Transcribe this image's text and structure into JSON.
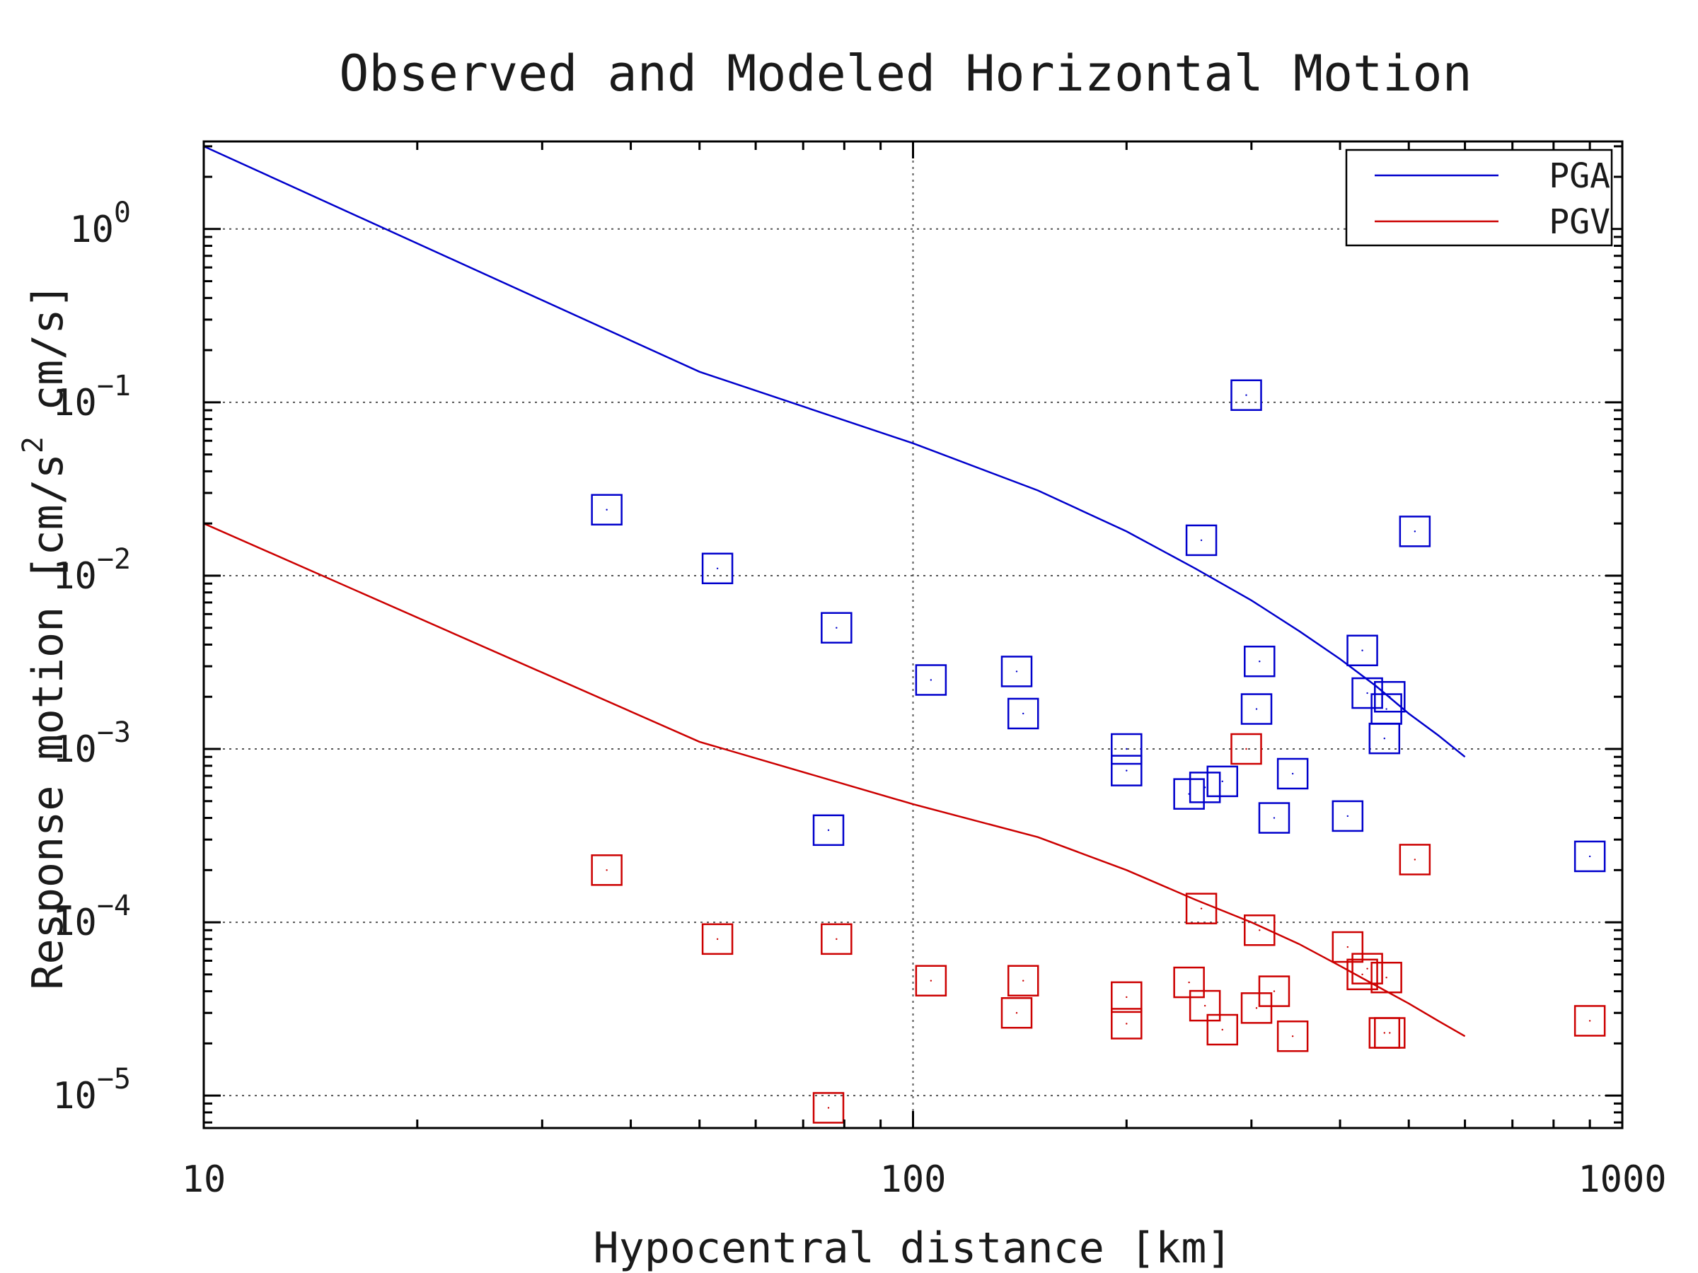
{
  "chart_data": {
    "type": "scatter",
    "title": "Observed and Modeled Horizontal Motion",
    "xlabel": "Hypocentral distance [km]",
    "ylabel": {
      "main": "Response motion [cm/s",
      "sup": "2",
      "tail": "cm/s]"
    },
    "x_scale": "log",
    "y_scale": "log",
    "xlim": [
      10,
      1000
    ],
    "ylim": [
      6.5e-06,
      3.2
    ],
    "grid": true,
    "legend_position": "top-right",
    "x_ticks": [
      {
        "value": 10,
        "label": "10"
      },
      {
        "value": 100,
        "label": "100"
      },
      {
        "value": 1000,
        "label": "1000"
      }
    ],
    "y_ticks": [
      {
        "value": 1,
        "base": "10",
        "exp": "0"
      },
      {
        "value": 0.1,
        "base": "10",
        "exp": "−1"
      },
      {
        "value": 0.01,
        "base": "10",
        "exp": "−2"
      },
      {
        "value": 0.001,
        "base": "10",
        "exp": "−3"
      },
      {
        "value": 0.0001,
        "base": "10",
        "exp": "−4"
      },
      {
        "value": 1e-05,
        "base": "10",
        "exp": "−5"
      }
    ],
    "lines": [
      {
        "name": "PGA",
        "color": "#0000cc",
        "x": [
          10,
          50,
          100,
          150,
          200,
          250,
          300,
          350,
          400,
          450,
          500,
          550,
          600
        ],
        "y": [
          3.0,
          0.15,
          0.058,
          0.031,
          0.018,
          0.011,
          0.0072,
          0.0048,
          0.0033,
          0.0023,
          0.0016,
          0.0012,
          0.0009
        ]
      },
      {
        "name": "PGV",
        "color": "#cc0000",
        "x": [
          10,
          50,
          100,
          150,
          200,
          250,
          300,
          350,
          400,
          450,
          500,
          550,
          600
        ],
        "y": [
          0.02,
          0.0011,
          0.00048,
          0.00031,
          0.0002,
          0.000135,
          0.0001,
          7.5e-05,
          5.6e-05,
          4.3e-05,
          3.4e-05,
          2.7e-05,
          2.2e-05
        ]
      }
    ],
    "scatter": [
      {
        "color": "#0000cc",
        "points": [
          {
            "x": 37,
            "y": 0.024
          },
          {
            "x": 53,
            "y": 0.011
          },
          {
            "x": 76,
            "y": 0.00034
          },
          {
            "x": 78,
            "y": 0.005
          },
          {
            "x": 106,
            "y": 0.0025
          },
          {
            "x": 140,
            "y": 0.0028
          },
          {
            "x": 143,
            "y": 0.0016
          },
          {
            "x": 200,
            "y": 0.001
          },
          {
            "x": 200,
            "y": 0.00075
          },
          {
            "x": 245,
            "y": 0.00055
          },
          {
            "x": 255,
            "y": 0.016
          },
          {
            "x": 258,
            "y": 0.0006
          },
          {
            "x": 273,
            "y": 0.00065
          },
          {
            "x": 295,
            "y": 0.11
          },
          {
            "x": 305,
            "y": 0.0017
          },
          {
            "x": 308,
            "y": 0.0032
          },
          {
            "x": 323,
            "y": 0.0004
          },
          {
            "x": 343,
            "y": 0.00072
          },
          {
            "x": 410,
            "y": 0.00041
          },
          {
            "x": 430,
            "y": 0.0037
          },
          {
            "x": 437,
            "y": 0.0021
          },
          {
            "x": 462,
            "y": 0.00115
          },
          {
            "x": 465,
            "y": 0.0017
          },
          {
            "x": 470,
            "y": 0.002
          },
          {
            "x": 510,
            "y": 0.018
          },
          {
            "x": 900,
            "y": 0.00024
          }
        ]
      },
      {
        "color": "#cc0000",
        "points": [
          {
            "x": 37,
            "y": 0.0002
          },
          {
            "x": 53,
            "y": 8e-05
          },
          {
            "x": 76,
            "y": 8.5e-06
          },
          {
            "x": 78,
            "y": 8e-05
          },
          {
            "x": 106,
            "y": 4.6e-05
          },
          {
            "x": 140,
            "y": 3e-05
          },
          {
            "x": 143,
            "y": 4.6e-05
          },
          {
            "x": 200,
            "y": 3.7e-05
          },
          {
            "x": 200,
            "y": 2.6e-05
          },
          {
            "x": 245,
            "y": 4.5e-05
          },
          {
            "x": 255,
            "y": 0.00012
          },
          {
            "x": 258,
            "y": 3.3e-05
          },
          {
            "x": 273,
            "y": 2.4e-05
          },
          {
            "x": 295,
            "y": 0.001
          },
          {
            "x": 305,
            "y": 3.2e-05
          },
          {
            "x": 308,
            "y": 9e-05
          },
          {
            "x": 323,
            "y": 4e-05
          },
          {
            "x": 343,
            "y": 2.2e-05
          },
          {
            "x": 410,
            "y": 7.2e-05
          },
          {
            "x": 430,
            "y": 5e-05
          },
          {
            "x": 437,
            "y": 5.4e-05
          },
          {
            "x": 462,
            "y": 2.3e-05
          },
          {
            "x": 465,
            "y": 4.8e-05
          },
          {
            "x": 470,
            "y": 2.3e-05
          },
          {
            "x": 510,
            "y": 0.00023
          },
          {
            "x": 900,
            "y": 2.7e-05
          }
        ]
      }
    ]
  }
}
